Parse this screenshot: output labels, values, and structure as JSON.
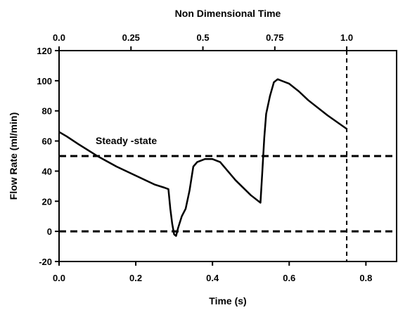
{
  "chart_data": {
    "type": "line",
    "title": "",
    "xlabel": "Time (s)",
    "ylabel": "Flow Rate (ml/min)",
    "top_xlabel": "Non Dimensional Time",
    "xlim": [
      0,
      0.88
    ],
    "ylim": [
      -20,
      120
    ],
    "x_ticks": [
      "0.0",
      "0.2",
      "0.4",
      "0.6",
      "0.8"
    ],
    "x_tick_values": [
      0,
      0.2,
      0.4,
      0.6,
      0.8
    ],
    "y_ticks": [
      "-20",
      "0",
      "20",
      "40",
      "60",
      "80",
      "100",
      "120"
    ],
    "y_tick_values": [
      -20,
      0,
      20,
      40,
      60,
      80,
      100,
      120
    ],
    "top_ticks": [
      "0.0",
      "0.25",
      "0.5",
      "0.75",
      "1.0"
    ],
    "top_tick_values": [
      0,
      0.25,
      0.5,
      0.75,
      1.0
    ],
    "top_axis_span_s": 0.75,
    "grid": false,
    "legend": "none",
    "reference_lines": [
      {
        "label": "Steady -state",
        "y": 50
      },
      {
        "label": "",
        "y": 0
      },
      {
        "label": "",
        "x": 0.75
      }
    ],
    "series": [
      {
        "x": [
          0,
          0.02,
          0.05,
          0.1,
          0.15,
          0.2,
          0.25,
          0.275,
          0.285,
          0.29,
          0.295,
          0.3,
          0.305,
          0.31,
          0.32,
          0.33,
          0.34,
          0.35,
          0.36,
          0.38,
          0.4,
          0.42,
          0.44,
          0.46,
          0.5,
          0.525,
          0.53,
          0.535,
          0.54,
          0.55,
          0.56,
          0.57,
          0.58,
          0.6,
          0.625,
          0.65,
          0.7,
          0.75
        ],
        "y": [
          66,
          63,
          58,
          50,
          43,
          37,
          31,
          29,
          28,
          15,
          5,
          -2,
          -3,
          2,
          10,
          15,
          27,
          43,
          46,
          48,
          48,
          46,
          40,
          34,
          24,
          19,
          40,
          62,
          78,
          90,
          99,
          101,
          100,
          98,
          93,
          87,
          77,
          68
        ]
      }
    ]
  }
}
